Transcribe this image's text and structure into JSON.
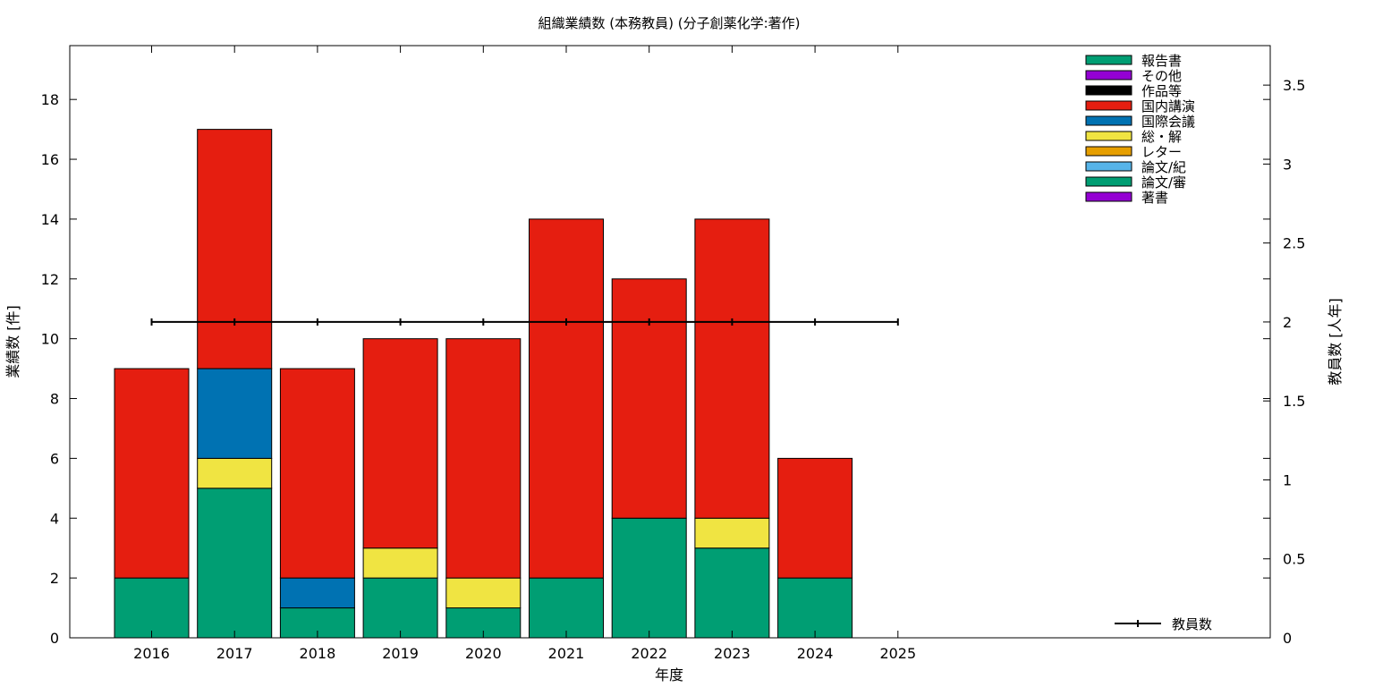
{
  "chart_data": {
    "type": "bar",
    "title": "組織業績数 (本務教員) (分子創薬化学:著作)",
    "xlabel": "年度",
    "ylabel": "業績数 [件]",
    "y2label": "教員数 [人年]",
    "categories": [
      "2016",
      "2017",
      "2018",
      "2019",
      "2020",
      "2021",
      "2022",
      "2023",
      "2024",
      "2025"
    ],
    "ylim": [
      0,
      19.8
    ],
    "yticks": [
      0,
      2,
      4,
      6,
      8,
      10,
      12,
      14,
      16,
      18
    ],
    "y2lim": [
      0,
      3.75
    ],
    "y2ticks": [
      "0",
      "0.5",
      "1",
      "1.5",
      "2",
      "2.5",
      "3",
      "3.5"
    ],
    "grid": false,
    "legend_position": "top-right",
    "stack_order": [
      "論文/審",
      "総・解",
      "国際会議",
      "国内講演"
    ],
    "series": [
      {
        "name": "報告書",
        "color": "#009e73",
        "values": [
          0,
          0,
          0,
          0,
          0,
          0,
          0,
          0,
          0,
          0
        ]
      },
      {
        "name": "その他",
        "color": "#9400d3",
        "values": [
          0,
          0,
          0,
          0,
          0,
          0,
          0,
          0,
          0,
          0
        ]
      },
      {
        "name": "作品等",
        "color": "#000000",
        "values": [
          0,
          0,
          0,
          0,
          0,
          0,
          0,
          0,
          0,
          0
        ]
      },
      {
        "name": "国内講演",
        "color": "#e51e10",
        "values": [
          7,
          8,
          7,
          7,
          8,
          12,
          8,
          10,
          4,
          0
        ]
      },
      {
        "name": "国際会議",
        "color": "#0072b2",
        "values": [
          0,
          3,
          1,
          0,
          0,
          0,
          0,
          0,
          0,
          0
        ]
      },
      {
        "name": "総・解",
        "color": "#f0e442",
        "values": [
          0,
          1,
          0,
          1,
          1,
          0,
          0,
          1,
          0,
          0
        ]
      },
      {
        "name": "レター",
        "color": "#e69f00",
        "values": [
          0,
          0,
          0,
          0,
          0,
          0,
          0,
          0,
          0,
          0
        ]
      },
      {
        "name": "論文/紀",
        "color": "#56b4e9",
        "values": [
          0,
          0,
          0,
          0,
          0,
          0,
          0,
          0,
          0,
          0
        ]
      },
      {
        "name": "論文/審",
        "color": "#009e73",
        "values": [
          2,
          5,
          1,
          2,
          1,
          2,
          4,
          3,
          2,
          0
        ]
      },
      {
        "name": "著書",
        "color": "#9400d3",
        "values": [
          0,
          0,
          0,
          0,
          0,
          0,
          0,
          0,
          0,
          0
        ]
      }
    ],
    "line_series": {
      "name": "教員数",
      "color": "#000000",
      "axis": "y2",
      "values": [
        2,
        2,
        2,
        2,
        2,
        2,
        2,
        2,
        2,
        2
      ]
    }
  }
}
